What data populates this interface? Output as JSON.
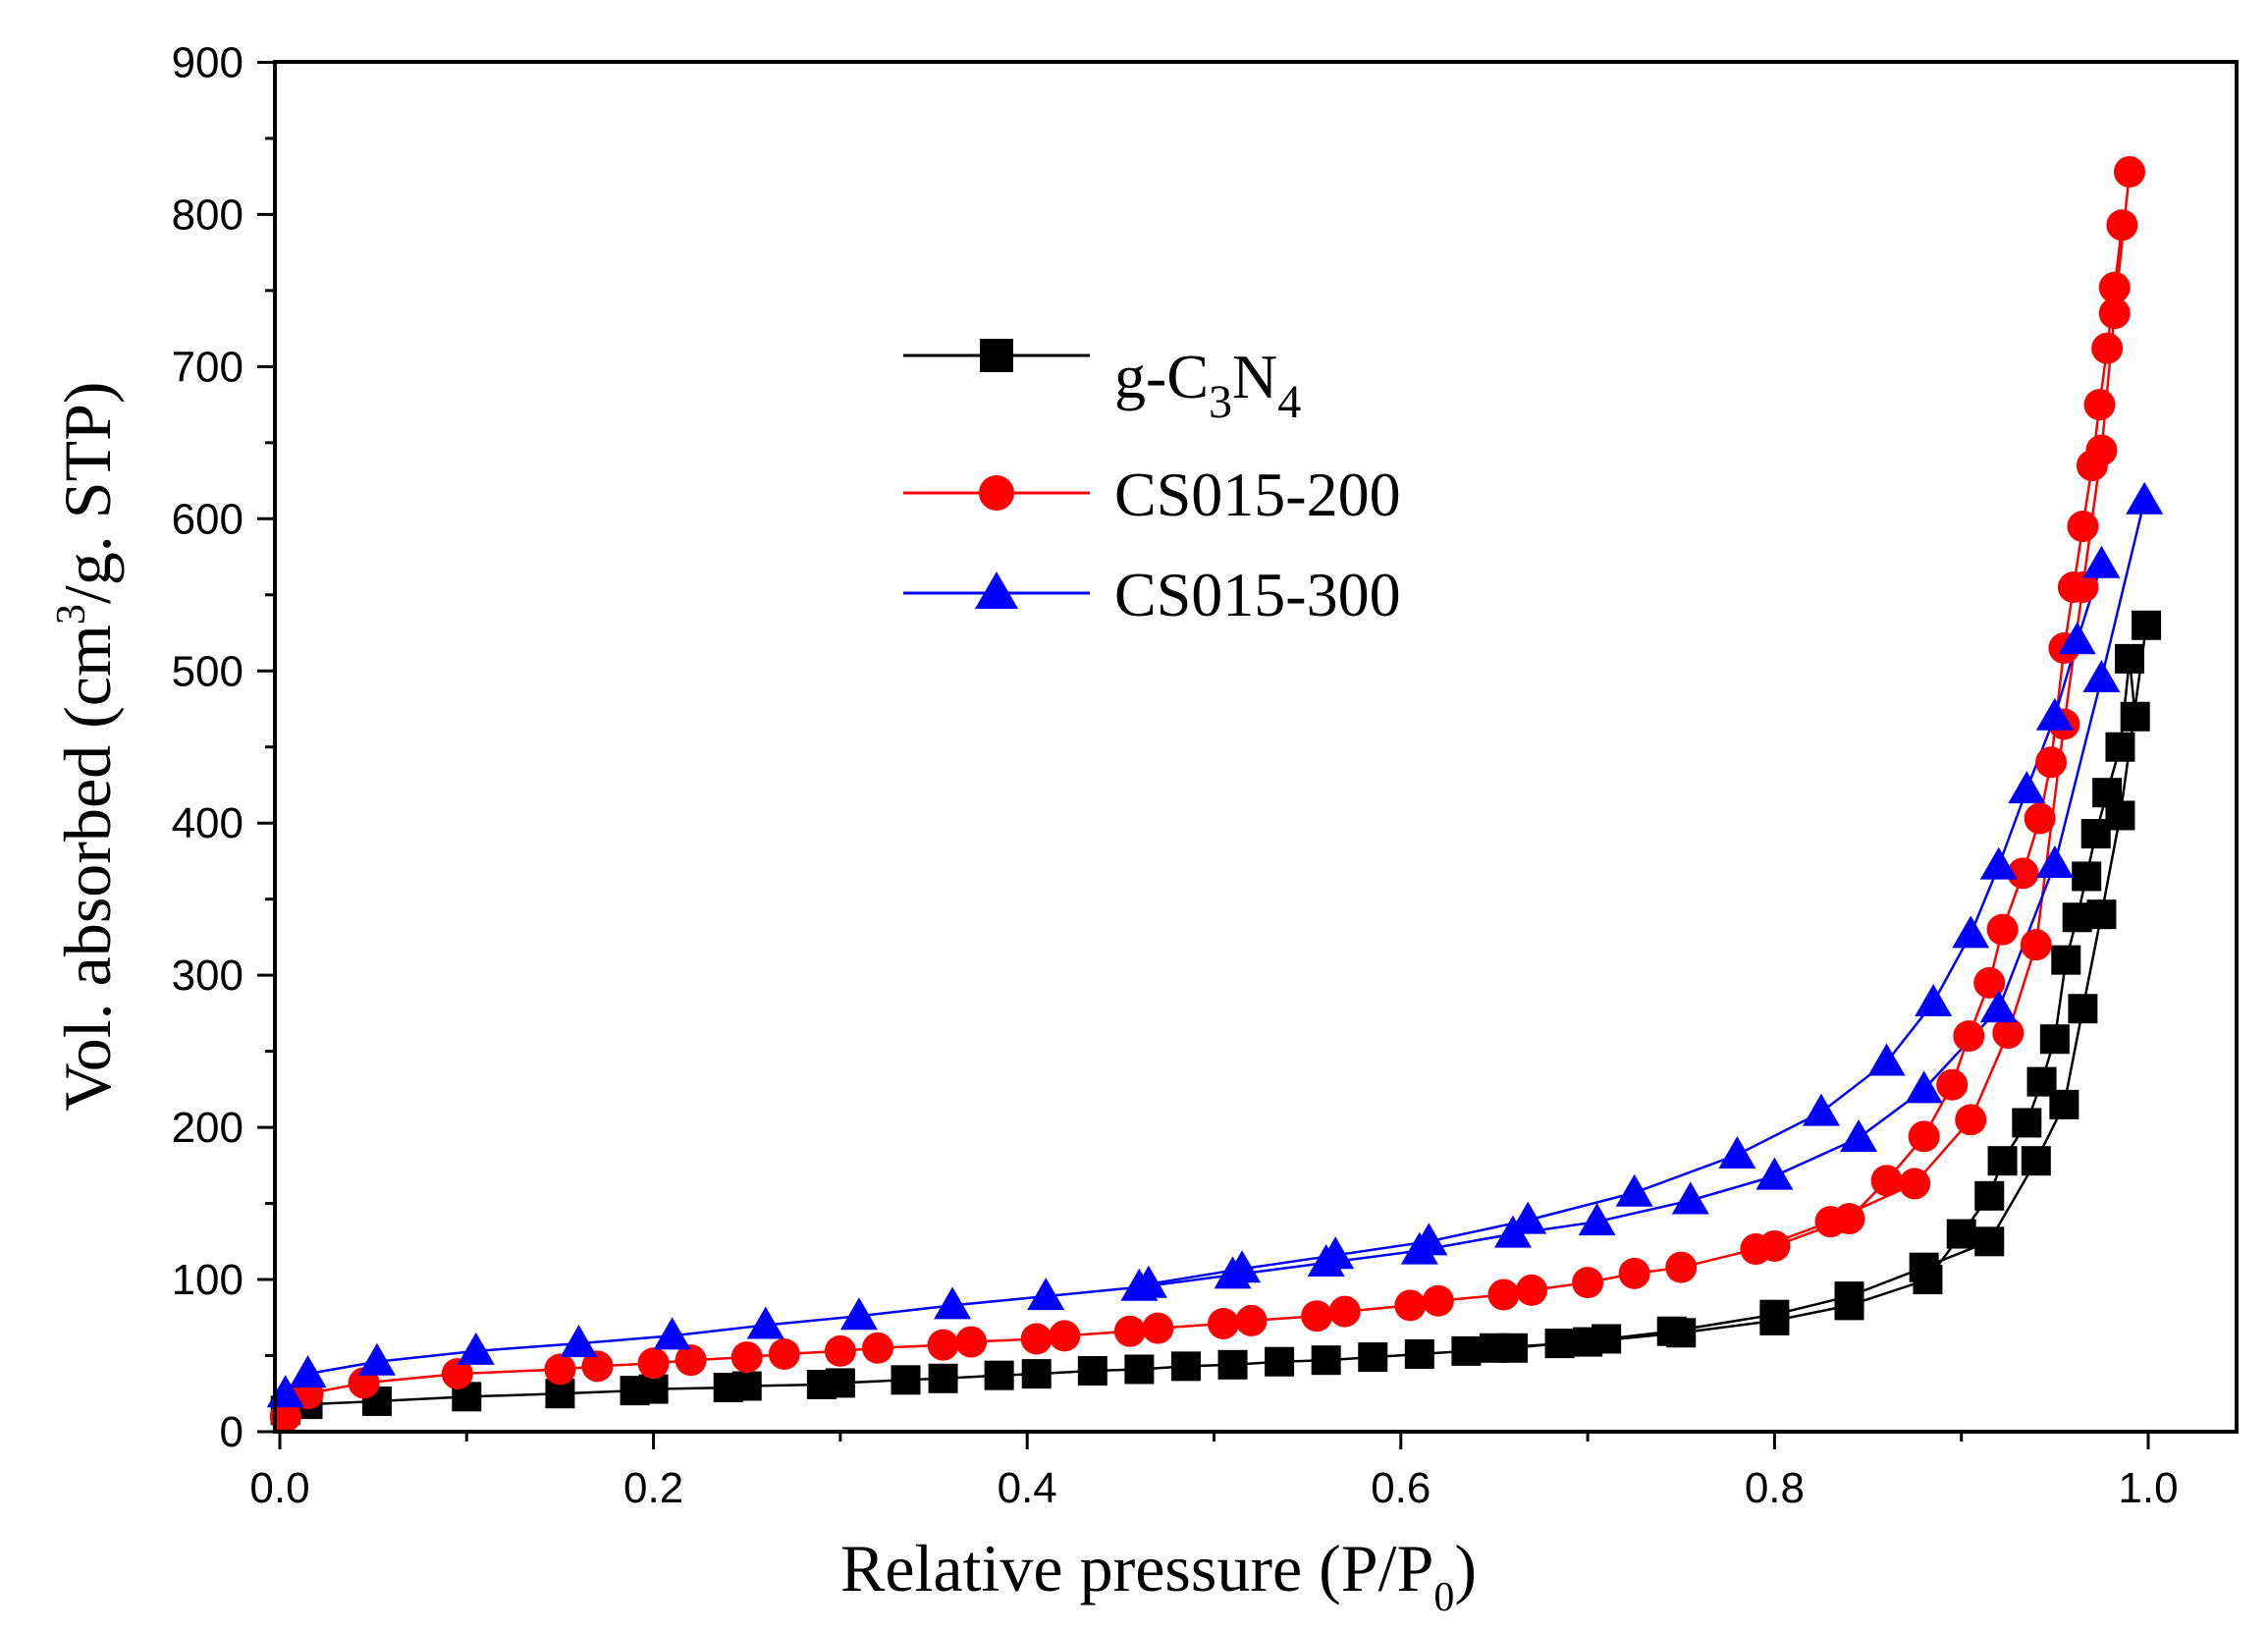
{
  "chart_data": {
    "type": "line",
    "title": "",
    "xlabel": "Relative pressure (P/P0)",
    "xlabel_parts": {
      "main": "Relative pressure (P/P",
      "sub": "0",
      "end": ")"
    },
    "ylabel": "Vol. absorbed (cm3/g. STP)",
    "ylabel_parts": {
      "main": "Vol. absorbed (cm",
      "sup": "3",
      "end": "/g. STP)"
    },
    "xlim": [
      0.0,
      1.05
    ],
    "ylim": [
      0,
      900
    ],
    "xticks": [
      "0.0",
      "0.2",
      "0.4",
      "0.6",
      "0.8",
      "1.0"
    ],
    "yticks": [
      "0",
      "100",
      "200",
      "300",
      "400",
      "500",
      "600",
      "700",
      "800",
      "900"
    ],
    "legend_position": "upper-left",
    "series": [
      {
        "name": "g-C3N4",
        "name_parts": {
          "a": "g-C",
          "s1": "3",
          "b": "N",
          "s2": "4"
        },
        "color": "#000000",
        "marker": "square",
        "adsorption": {
          "x": [
            0.003,
            0.015,
            0.052,
            0.1,
            0.15,
            0.19,
            0.2,
            0.24,
            0.25,
            0.29,
            0.3,
            0.335,
            0.355,
            0.385,
            0.405,
            0.435,
            0.46,
            0.485,
            0.51,
            0.535,
            0.56,
            0.585,
            0.61,
            0.635,
            0.66,
            0.685,
            0.71,
            0.745,
            0.8,
            0.84,
            0.88,
            0.915,
            0.94,
            0.955,
            0.965,
            0.975,
            0.985,
            0.999
          ],
          "y": [
            14,
            18,
            20,
            23,
            25,
            27,
            28,
            29,
            30,
            31,
            32,
            34,
            35,
            37,
            38,
            40,
            41,
            43,
            44,
            46,
            47,
            49,
            51,
            53,
            55,
            58,
            61,
            66,
            77,
            89,
            108,
            125,
            178,
            215,
            278,
            340,
            405,
            530
          ]
        },
        "desorption": {
          "x": [
            0.993,
            0.99,
            0.985,
            0.978,
            0.972,
            0.967,
            0.962,
            0.956,
            0.95,
            0.943,
            0.935,
            0.922,
            0.915,
            0.9,
            0.882,
            0.84,
            0.8,
            0.75,
            0.7,
            0.65
          ],
          "y": [
            470,
            508,
            450,
            420,
            393,
            365,
            338,
            310,
            258,
            230,
            203,
            178,
            155,
            130,
            100,
            83,
            73,
            65,
            59,
            55
          ]
        }
      },
      {
        "name": "CS015-200",
        "name_parts": {
          "a": "CS015-200",
          "s1": "",
          "b": "",
          "s2": ""
        },
        "color": "#ff0000",
        "marker": "circle",
        "adsorption": {
          "x": [
            0.003,
            0.015,
            0.045,
            0.095,
            0.15,
            0.17,
            0.2,
            0.22,
            0.25,
            0.27,
            0.3,
            0.32,
            0.355,
            0.37,
            0.405,
            0.42,
            0.455,
            0.47,
            0.505,
            0.52,
            0.555,
            0.57,
            0.605,
            0.62,
            0.655,
            0.67,
            0.7,
            0.725,
            0.75,
            0.79,
            0.83,
            0.875,
            0.905,
            0.925,
            0.94,
            0.955,
            0.965,
            0.975,
            0.982,
            0.99
          ],
          "y": [
            10,
            25,
            32,
            38,
            41,
            43,
            45,
            47,
            49,
            51,
            53,
            55,
            57,
            59,
            61,
            63,
            66,
            68,
            71,
            73,
            76,
            79,
            83,
            86,
            90,
            93,
            98,
            104,
            108,
            120,
            138,
            163,
            205,
            262,
            320,
            465,
            555,
            645,
            735,
            828
          ]
        },
        "desorption": {
          "x": [
            0.986,
            0.982,
            0.978,
            0.974,
            0.97,
            0.965,
            0.96,
            0.955,
            0.948,
            0.942,
            0.933,
            0.922,
            0.915,
            0.904,
            0.895,
            0.88,
            0.86,
            0.84,
            0.8
          ],
          "y": [
            793,
            752,
            712,
            675,
            635,
            595,
            555,
            515,
            440,
            403,
            367,
            330,
            295,
            260,
            228,
            194,
            165,
            140,
            122
          ]
        }
      },
      {
        "name": "CS015-300",
        "name_parts": {
          "a": "CS015-300",
          "s1": "",
          "b": "",
          "s2": ""
        },
        "color": "#0000ff",
        "marker": "triangle",
        "adsorption": {
          "x": [
            0.003,
            0.015,
            0.052,
            0.105,
            0.16,
            0.21,
            0.26,
            0.31,
            0.36,
            0.41,
            0.46,
            0.51,
            0.56,
            0.61,
            0.66,
            0.705,
            0.755,
            0.8,
            0.845,
            0.88,
            0.92,
            0.95,
            0.975,
            0.998
          ],
          "y": [
            25,
            38,
            46,
            53,
            58,
            63,
            70,
            76,
            83,
            89,
            95,
            103,
            111,
            119,
            130,
            138,
            152,
            168,
            193,
            225,
            278,
            373,
            495,
            612
          ]
        },
        "desorption": {
          "x": [
            0.975,
            0.962,
            0.95,
            0.935,
            0.92,
            0.905,
            0.885,
            0.86,
            0.825,
            0.78,
            0.725,
            0.668,
            0.615,
            0.565,
            0.515,
            0.465
          ],
          "y": [
            570,
            520,
            470,
            422,
            372,
            327,
            282,
            243,
            210,
            182,
            157,
            139,
            125,
            116,
            107,
            97
          ]
        }
      }
    ]
  }
}
